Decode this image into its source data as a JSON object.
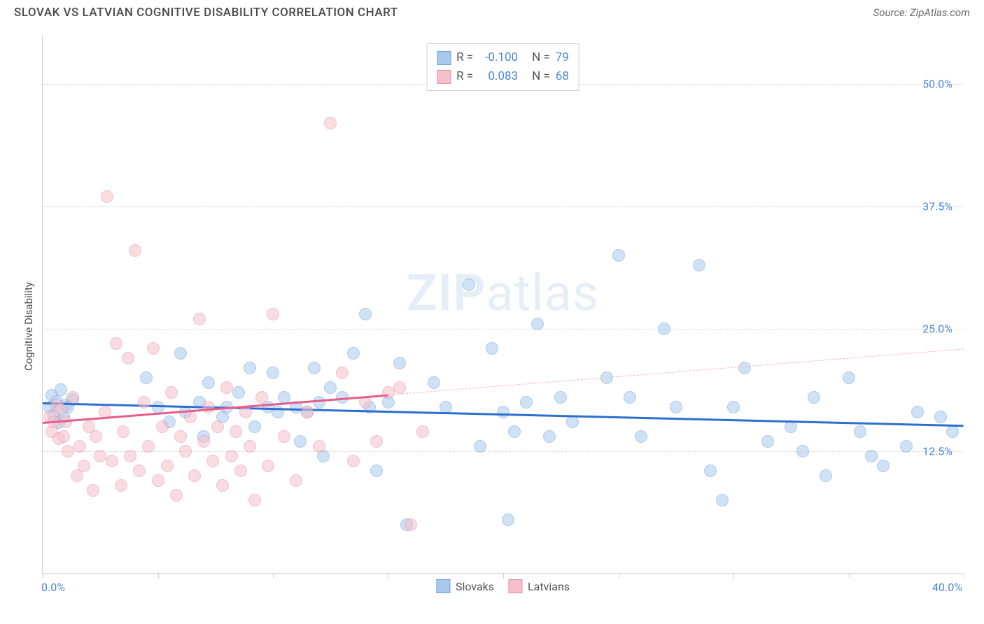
{
  "header": {
    "title": "SLOVAK VS LATVIAN COGNITIVE DISABILITY CORRELATION CHART",
    "source": "Source: ZipAtlas.com"
  },
  "watermark": {
    "zip": "ZIP",
    "atlas": "atlas"
  },
  "chart": {
    "type": "scatter",
    "background_color": "#ffffff",
    "grid_color": "#d8d8d8",
    "axis_color": "#cfcfcf",
    "ylabel": "Cognitive Disability",
    "label_fontsize": 15,
    "label_color": "#4a4a4a",
    "xlim": [
      0,
      40
    ],
    "ylim": [
      0,
      55
    ],
    "x_ticks": [
      0,
      5,
      10,
      15,
      20,
      25,
      30,
      35,
      40
    ],
    "x_tick_labels": {
      "0": "0.0%",
      "40": "40.0%"
    },
    "y_ticks": [
      12.5,
      25.0,
      37.5,
      50.0
    ],
    "y_tick_labels": [
      "12.5%",
      "25.0%",
      "37.5%",
      "50.0%"
    ],
    "tick_label_color": "#4b87d6",
    "tick_label_fontsize": 16,
    "point_radius": 9,
    "point_opacity": 0.55,
    "series": [
      {
        "name": "Slovaks",
        "color_fill": "#a9c9ec",
        "color_stroke": "#6fa0d8",
        "line_color": "#2d6fd0",
        "line_width": 3,
        "dash_color": "#a9c9ec",
        "trend": {
          "x1": 0,
          "y1": 17.5,
          "x2": 40,
          "y2": 15.2,
          "solid_to_x": 40
        },
        "stats": {
          "r_label": "R =",
          "r": "-0.100",
          "n_label": "N =",
          "n": "79"
        },
        "points": [
          [
            0.3,
            17.0
          ],
          [
            0.4,
            18.2
          ],
          [
            0.5,
            16.2
          ],
          [
            0.6,
            17.6
          ],
          [
            0.7,
            15.4
          ],
          [
            0.8,
            18.8
          ],
          [
            0.9,
            16.0
          ],
          [
            1.0,
            17.2
          ],
          [
            1.1,
            17.0
          ],
          [
            1.3,
            17.8
          ],
          [
            4.5,
            20.0
          ],
          [
            5.0,
            17.0
          ],
          [
            5.5,
            15.5
          ],
          [
            6.0,
            22.5
          ],
          [
            6.2,
            16.5
          ],
          [
            6.8,
            17.5
          ],
          [
            7.0,
            14.0
          ],
          [
            7.2,
            19.5
          ],
          [
            7.8,
            16.0
          ],
          [
            8.0,
            17.0
          ],
          [
            8.5,
            18.5
          ],
          [
            9.0,
            21.0
          ],
          [
            9.2,
            15.0
          ],
          [
            9.8,
            17.0
          ],
          [
            10.0,
            20.5
          ],
          [
            10.2,
            16.5
          ],
          [
            10.5,
            18.0
          ],
          [
            11.0,
            17.0
          ],
          [
            11.2,
            13.5
          ],
          [
            11.5,
            16.5
          ],
          [
            11.8,
            21.0
          ],
          [
            12.0,
            17.5
          ],
          [
            12.2,
            12.0
          ],
          [
            12.5,
            19.0
          ],
          [
            13.0,
            18.0
          ],
          [
            13.5,
            22.5
          ],
          [
            14.0,
            26.5
          ],
          [
            14.2,
            17.0
          ],
          [
            14.5,
            10.5
          ],
          [
            15.0,
            17.5
          ],
          [
            15.5,
            21.5
          ],
          [
            15.8,
            5.0
          ],
          [
            17.0,
            19.5
          ],
          [
            17.5,
            17.0
          ],
          [
            18.5,
            29.5
          ],
          [
            19.0,
            13.0
          ],
          [
            19.5,
            23.0
          ],
          [
            20.0,
            16.5
          ],
          [
            20.2,
            5.5
          ],
          [
            20.5,
            14.5
          ],
          [
            21.0,
            17.5
          ],
          [
            21.5,
            25.5
          ],
          [
            22.0,
            14.0
          ],
          [
            22.5,
            18.0
          ],
          [
            23.0,
            15.5
          ],
          [
            24.5,
            20.0
          ],
          [
            25.0,
            32.5
          ],
          [
            25.5,
            18.0
          ],
          [
            26.0,
            14.0
          ],
          [
            27.0,
            25.0
          ],
          [
            27.5,
            17.0
          ],
          [
            28.5,
            31.5
          ],
          [
            29.0,
            10.5
          ],
          [
            29.5,
            7.5
          ],
          [
            30.0,
            17.0
          ],
          [
            30.5,
            21.0
          ],
          [
            31.5,
            13.5
          ],
          [
            32.5,
            15.0
          ],
          [
            33.0,
            12.5
          ],
          [
            33.5,
            18.0
          ],
          [
            34.0,
            10.0
          ],
          [
            35.0,
            20.0
          ],
          [
            35.5,
            14.5
          ],
          [
            36.0,
            12.0
          ],
          [
            36.5,
            11.0
          ],
          [
            37.5,
            13.0
          ],
          [
            38.0,
            16.5
          ],
          [
            39.0,
            16.0
          ],
          [
            39.5,
            14.5
          ]
        ]
      },
      {
        "name": "Latvians",
        "color_fill": "#f4c0cc",
        "color_stroke": "#e590a8",
        "line_color": "#e95c8a",
        "line_width": 3,
        "dash_color": "#f0b5c5",
        "trend": {
          "x1": 0,
          "y1": 15.5,
          "x2": 40,
          "y2": 23.0,
          "solid_to_x": 15
        },
        "stats": {
          "r_label": "R =",
          "r": "0.083",
          "n_label": "N =",
          "n": "68"
        },
        "points": [
          [
            0.3,
            16.0
          ],
          [
            0.4,
            14.5
          ],
          [
            0.5,
            15.5
          ],
          [
            0.6,
            17.2
          ],
          [
            0.7,
            13.8
          ],
          [
            0.8,
            16.8
          ],
          [
            0.9,
            14.0
          ],
          [
            1.0,
            15.5
          ],
          [
            1.1,
            12.5
          ],
          [
            1.3,
            18.0
          ],
          [
            1.5,
            10.0
          ],
          [
            1.6,
            13.0
          ],
          [
            1.8,
            11.0
          ],
          [
            2.0,
            15.0
          ],
          [
            2.2,
            8.5
          ],
          [
            2.3,
            14.0
          ],
          [
            2.5,
            12.0
          ],
          [
            2.7,
            16.5
          ],
          [
            2.8,
            38.5
          ],
          [
            3.0,
            11.5
          ],
          [
            3.2,
            23.5
          ],
          [
            3.4,
            9.0
          ],
          [
            3.5,
            14.5
          ],
          [
            3.7,
            22.0
          ],
          [
            3.8,
            12.0
          ],
          [
            4.0,
            33.0
          ],
          [
            4.2,
            10.5
          ],
          [
            4.4,
            17.5
          ],
          [
            4.6,
            13.0
          ],
          [
            4.8,
            23.0
          ],
          [
            5.0,
            9.5
          ],
          [
            5.2,
            15.0
          ],
          [
            5.4,
            11.0
          ],
          [
            5.6,
            18.5
          ],
          [
            5.8,
            8.0
          ],
          [
            6.0,
            14.0
          ],
          [
            6.2,
            12.5
          ],
          [
            6.4,
            16.0
          ],
          [
            6.6,
            10.0
          ],
          [
            6.8,
            26.0
          ],
          [
            7.0,
            13.5
          ],
          [
            7.2,
            17.0
          ],
          [
            7.4,
            11.5
          ],
          [
            7.6,
            15.0
          ],
          [
            7.8,
            9.0
          ],
          [
            8.0,
            19.0
          ],
          [
            8.2,
            12.0
          ],
          [
            8.4,
            14.5
          ],
          [
            8.6,
            10.5
          ],
          [
            8.8,
            16.5
          ],
          [
            9.0,
            13.0
          ],
          [
            9.2,
            7.5
          ],
          [
            9.5,
            18.0
          ],
          [
            9.8,
            11.0
          ],
          [
            10.0,
            26.5
          ],
          [
            10.5,
            14.0
          ],
          [
            11.0,
            9.5
          ],
          [
            11.5,
            16.5
          ],
          [
            12.0,
            13.0
          ],
          [
            12.5,
            46.0
          ],
          [
            13.0,
            20.5
          ],
          [
            13.5,
            11.5
          ],
          [
            14.0,
            17.5
          ],
          [
            14.5,
            13.5
          ],
          [
            15.0,
            18.5
          ],
          [
            15.5,
            19.0
          ],
          [
            16.0,
            5.0
          ],
          [
            16.5,
            14.5
          ]
        ]
      }
    ],
    "legend_bottom": [
      {
        "label": "Slovaks",
        "fill": "#a9c9ec",
        "stroke": "#6fa0d8"
      },
      {
        "label": "Latvians",
        "fill": "#f4c0cc",
        "stroke": "#e590a8"
      }
    ]
  }
}
